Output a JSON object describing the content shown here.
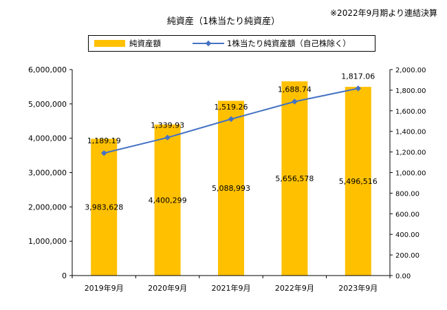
{
  "note": "※2022年9月期より連結決算",
  "colors": {
    "bar": "#FFC000",
    "line": "#4472C4"
  },
  "chart_data": {
    "type": "bar",
    "title": "純資産（1株当たり純資産）",
    "categories": [
      "2019年9月",
      "2020年9月",
      "2021年9月",
      "2022年9月",
      "2023年9月"
    ],
    "series": [
      {
        "name": "純資産額",
        "type": "bar",
        "axis": "left",
        "values": [
          3983628,
          4400299,
          5088993,
          5656578,
          5496516
        ],
        "labels": [
          "3,983,628",
          "4,400,299",
          "5,088,993",
          "5,656,578",
          "5,496,516"
        ]
      },
      {
        "name": "1株当たり純資産額（自己株除く）",
        "type": "line",
        "axis": "right",
        "values": [
          1189.19,
          1339.93,
          1519.26,
          1688.74,
          1817.06
        ],
        "labels": [
          "1,189.19",
          "1,339.93",
          "1,519.26",
          "1,688.74",
          "1,817.06"
        ]
      }
    ],
    "left_axis": {
      "ylim": [
        0,
        6000000
      ],
      "ticks": [
        "0",
        "1,000,000",
        "2,000,000",
        "3,000,000",
        "4,000,000",
        "5,000,000",
        "6,000,000"
      ]
    },
    "right_axis": {
      "ylim": [
        0,
        2000
      ],
      "ticks": [
        "0.00",
        "200.00",
        "400.00",
        "600.00",
        "800.00",
        "1,000.00",
        "1,200.00",
        "1,400.00",
        "1,600.00",
        "1,800.00",
        "2,000.00"
      ]
    },
    "legend_position": "top",
    "grid": false
  }
}
